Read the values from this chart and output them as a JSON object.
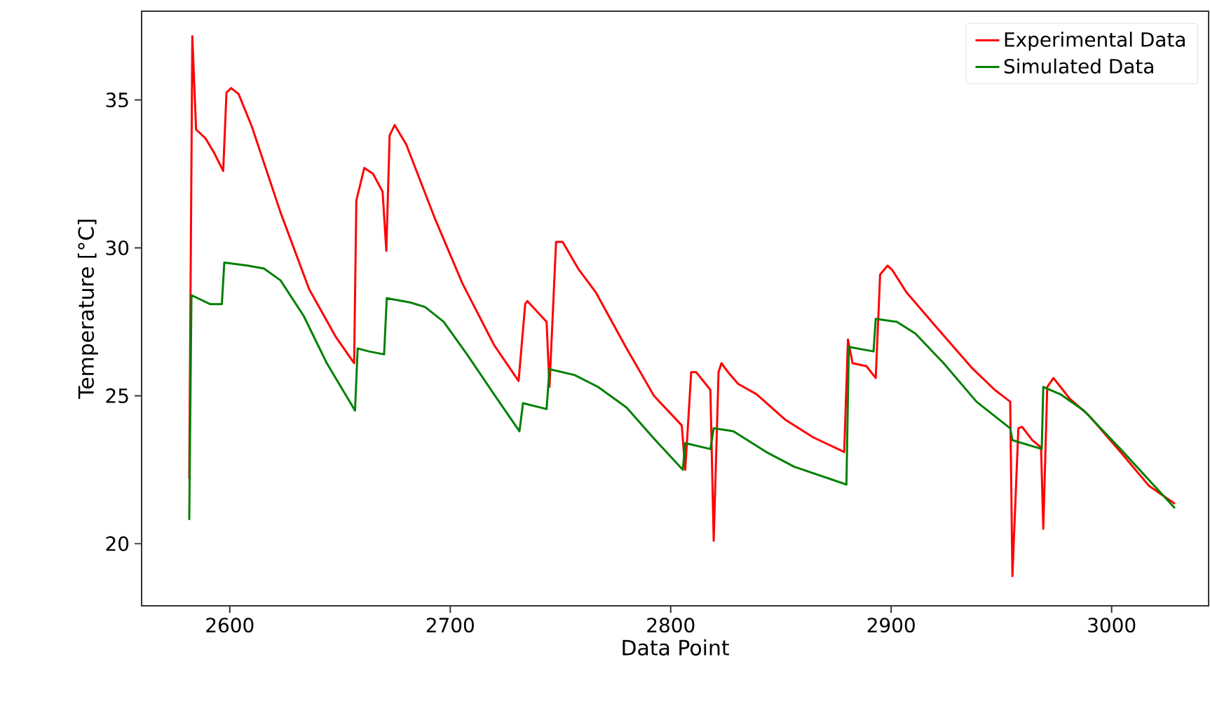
{
  "chart_data": {
    "type": "line",
    "xlabel": "Data Point",
    "ylabel": "Temperature [°C]",
    "xlim": [
      2560,
      3044
    ],
    "ylim": [
      17.9,
      38.0
    ],
    "xticks": [
      2600,
      2700,
      2800,
      2900,
      3000
    ],
    "yticks": [
      20,
      25,
      30,
      35
    ],
    "grid": false,
    "legend": "top right",
    "marker": "none",
    "line_style": "solid",
    "series": [
      {
        "name": "Experimental Data",
        "color": "#ff0000",
        "x": [
          2581.6,
          2583,
          2584.7,
          2589,
          2593,
          2597,
          2598.5,
          2600.6,
          2604,
          2610,
          2623,
          2636,
          2648,
          2656.4,
          2657.4,
          2661,
          2665,
          2669.3,
          2671,
          2672.5,
          2674.8,
          2680,
          2693,
          2705.5,
          2720,
          2731,
          2734,
          2735,
          2743.7,
          2745,
          2748,
          2751,
          2758,
          2766,
          2780,
          2792.4,
          2805,
          2806.6,
          2809.3,
          2811.5,
          2818,
          2819.5,
          2821.7,
          2823,
          2826,
          2830.6,
          2839,
          2851.8,
          2864.5,
          2878.7,
          2880.4,
          2882.5,
          2888.8,
          2893,
          2895,
          2898.4,
          2900.5,
          2906.9,
          2919.6,
          2936.5,
          2947,
          2954,
          2955,
          2957.7,
          2959.4,
          2964,
          2968,
          2969,
          2970.8,
          2973.6,
          2976.8,
          2981,
          2989.5,
          3004,
          3017,
          3028.7
        ],
        "values": [
          22.2,
          37.15,
          34.0,
          33.7,
          33.2,
          32.6,
          35.25,
          35.4,
          35.2,
          34.1,
          31.2,
          28.6,
          27.0,
          26.1,
          31.6,
          32.7,
          32.5,
          31.9,
          29.9,
          33.8,
          34.15,
          33.5,
          31.0,
          28.8,
          26.7,
          25.5,
          28.1,
          28.2,
          27.5,
          25.3,
          30.2,
          30.2,
          29.3,
          28.5,
          26.6,
          25.0,
          24.0,
          22.5,
          25.8,
          25.8,
          25.2,
          20.1,
          25.8,
          26.1,
          25.8,
          25.4,
          25.05,
          24.2,
          23.6,
          23.1,
          26.9,
          26.1,
          26.0,
          25.6,
          29.1,
          29.4,
          29.25,
          28.5,
          27.4,
          25.95,
          25.2,
          24.8,
          18.9,
          23.9,
          23.95,
          23.5,
          23.25,
          20.5,
          25.3,
          25.6,
          25.3,
          24.9,
          24.35,
          23.1,
          21.95,
          21.35
        ]
      },
      {
        "name": "Simulated Data",
        "color": "#008000",
        "x": [
          2581.6,
          2582.6,
          2591,
          2596.4,
          2597.5,
          2608,
          2615.5,
          2623,
          2633.5,
          2644,
          2656.8,
          2658,
          2663,
          2670,
          2671.2,
          2682,
          2688.6,
          2697,
          2707.6,
          2720.3,
          2731.4,
          2733,
          2743.7,
          2745,
          2756.4,
          2767,
          2780,
          2792.4,
          2805.5,
          2806.6,
          2818,
          2819.5,
          2828.4,
          2843.3,
          2856,
          2879.7,
          2880.8,
          2892,
          2893,
          2902.6,
          2911,
          2923.8,
          2938.7,
          2954,
          2955,
          2968.3,
          2969,
          2976.8,
          2987.4,
          3004,
          3028.7
        ],
        "values": [
          20.8,
          28.4,
          28.1,
          28.1,
          29.5,
          29.4,
          29.3,
          28.9,
          27.7,
          26.1,
          24.5,
          26.6,
          26.5,
          26.4,
          28.3,
          28.15,
          28.0,
          27.5,
          26.4,
          25.0,
          23.8,
          24.75,
          24.55,
          25.9,
          25.7,
          25.3,
          24.6,
          23.55,
          22.5,
          23.4,
          23.2,
          23.9,
          23.8,
          23.1,
          22.6,
          22.0,
          26.65,
          26.5,
          27.6,
          27.5,
          27.1,
          26.1,
          24.8,
          23.9,
          23.5,
          23.2,
          25.3,
          25.05,
          24.5,
          23.2,
          21.2
        ]
      }
    ]
  }
}
